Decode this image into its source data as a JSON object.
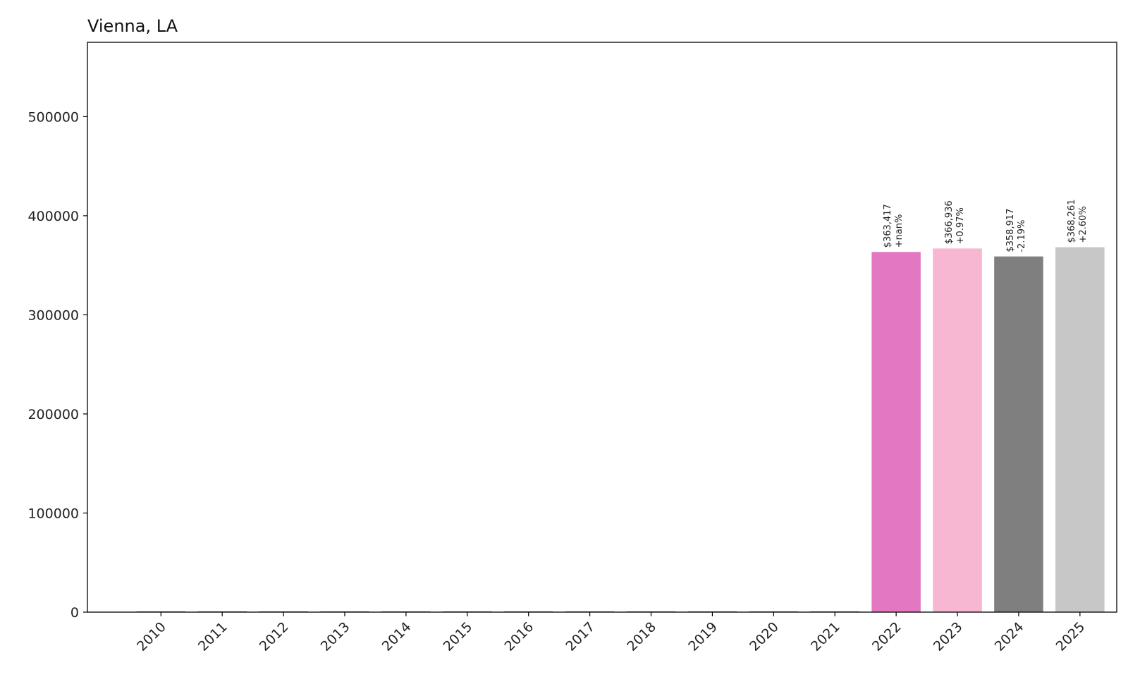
{
  "chart_data": {
    "type": "bar",
    "title": "Vienna, LA",
    "xlabel": "",
    "ylabel": "",
    "categories": [
      "2010",
      "2011",
      "2012",
      "2013",
      "2014",
      "2015",
      "2016",
      "2017",
      "2018",
      "2019",
      "2020",
      "2021",
      "2022",
      "2023",
      "2024",
      "2025"
    ],
    "values": [
      0,
      0,
      0,
      0,
      0,
      0,
      0,
      0,
      0,
      0,
      0,
      0,
      363417,
      366936,
      358917,
      368261
    ],
    "bar_labels": [
      {
        "value": "$363,417",
        "change": "+nan%"
      },
      {
        "value": "$366,936",
        "change": "+0.97%"
      },
      {
        "value": "$358,917",
        "change": "-2.19%"
      },
      {
        "value": "$368,261",
        "change": "+2.60%"
      }
    ],
    "labeled_from_index": 12,
    "colors": [
      "#e377c2",
      "#f7b6d2",
      "#7f7f7f",
      "#c7c7c7"
    ],
    "ylim": [
      0,
      575000
    ],
    "yticks": [
      0,
      100000,
      200000,
      300000,
      400000,
      500000
    ],
    "ytick_labels": [
      "0",
      "100000",
      "200000",
      "300000",
      "400000",
      "500000"
    ],
    "grid": false,
    "legend": "none"
  }
}
